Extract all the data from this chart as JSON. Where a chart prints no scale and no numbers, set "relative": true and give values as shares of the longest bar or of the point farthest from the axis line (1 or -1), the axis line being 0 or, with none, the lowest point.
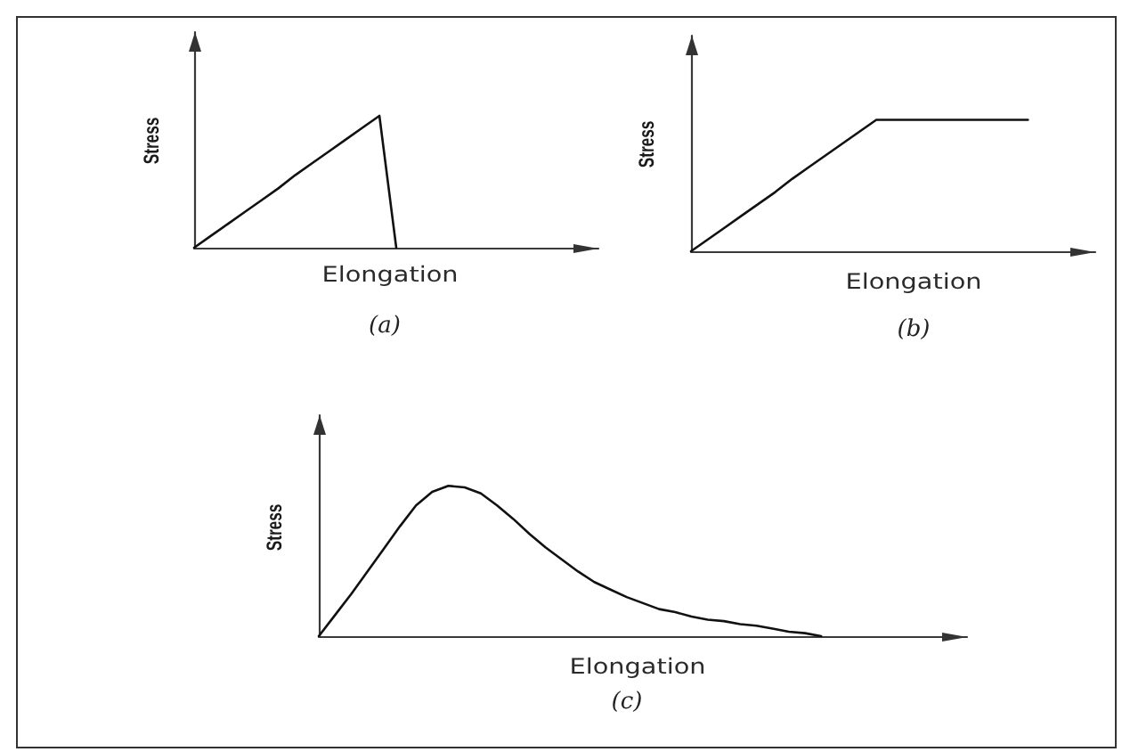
{
  "chart_data": [
    {
      "type": "line",
      "relative": true,
      "color": "#111111",
      "xlabel": "Elongation",
      "ylabel": "Stress",
      "annotations": [
        "(a)"
      ],
      "categories": [
        null,
        null,
        null,
        null,
        null,
        null,
        null,
        null,
        null,
        null,
        null,
        null,
        null,
        null,
        null,
        null,
        null,
        null,
        null,
        null,
        null,
        null,
        null,
        null,
        null
      ],
      "values": [
        0,
        0.09,
        0.18,
        0.27,
        0.36,
        0.45,
        0.55,
        0.64,
        0.73,
        0.82,
        0.91,
        1,
        0,
        null,
        null,
        null,
        null,
        null,
        null,
        null,
        null,
        null,
        null,
        null,
        null
      ]
    },
    {
      "type": "line",
      "relative": true,
      "color": "#111111",
      "xlabel": "Elongation",
      "ylabel": "Stress",
      "annotations": [
        "(b)"
      ],
      "categories": [
        null,
        null,
        null,
        null,
        null,
        null,
        null,
        null,
        null,
        null,
        null,
        null,
        null,
        null,
        null,
        null,
        null,
        null,
        null,
        null,
        null,
        null,
        null,
        null,
        null
      ],
      "values": [
        0,
        0.09,
        0.18,
        0.27,
        0.36,
        0.45,
        0.55,
        0.64,
        0.73,
        0.82,
        0.91,
        1,
        1,
        1,
        1,
        1,
        1,
        1,
        1,
        1,
        1,
        null,
        null,
        null,
        null
      ]
    },
    {
      "type": "line",
      "relative": true,
      "color": "#111111",
      "xlabel": "Elongation",
      "ylabel": "Stress",
      "annotations": [
        "(c)"
      ],
      "categories": [
        null,
        null,
        null,
        null,
        null,
        null,
        null,
        null,
        null,
        null,
        null,
        null,
        null,
        null,
        null,
        null,
        null,
        null,
        null,
        null,
        null,
        null,
        null,
        null,
        null,
        null,
        null,
        null,
        null,
        null,
        null,
        null,
        null,
        null,
        null,
        null,
        null,
        null,
        null,
        null,
        null
      ],
      "values": [
        0,
        0.14,
        0.28,
        0.43,
        0.58,
        0.73,
        0.87,
        0.96,
        1,
        0.99,
        0.95,
        0.87,
        0.78,
        0.68,
        0.59,
        0.51,
        0.43,
        0.36,
        0.31,
        0.26,
        0.22,
        0.18,
        0.16,
        0.13,
        0.11,
        0.1,
        0.08,
        0.07,
        0.05,
        0.03,
        0.02,
        0,
        null,
        null,
        null,
        null,
        null,
        null,
        null,
        null,
        null
      ]
    }
  ]
}
